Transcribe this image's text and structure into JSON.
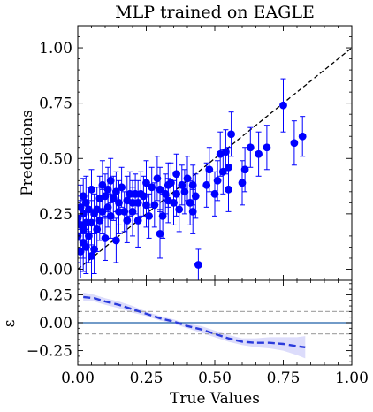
{
  "figure": {
    "title": "MLP trained on EAGLE",
    "xlabel": "True Values",
    "ylabel_top": "Predictions",
    "ylabel_bottom": "ε"
  },
  "colors": {
    "points": "#0000ff",
    "errorbars": "#0000ff",
    "diagonal": "#000000",
    "residual_line": "#2a3bdc",
    "residual_band": "#dcdcfb",
    "zero_line": "#1f5fa8",
    "threshold_lines": "#aaaaaa"
  },
  "chart_data": [
    {
      "type": "scatter",
      "title": "MLP trained on EAGLE",
      "ylabel": "Predictions",
      "xlim": [
        0.0,
        1.0
      ],
      "ylim": [
        -0.05,
        1.1
      ],
      "xticks": [
        "0.00",
        "0.25",
        "0.50",
        "0.75",
        "1.00"
      ],
      "yticks": [
        "0.00",
        "0.25",
        "0.50",
        "0.75",
        "1.00"
      ],
      "reference_line": {
        "style": "dashed",
        "from": [
          0,
          0
        ],
        "to": [
          1,
          1
        ]
      },
      "series": [
        {
          "points": [
            [
              0.0,
              0.23,
              0.1
            ],
            [
              0.0,
              0.15,
              0.12
            ],
            [
              0.01,
              0.08,
              0.12
            ],
            [
              0.01,
              0.2,
              0.11
            ],
            [
              0.01,
              0.28,
              0.1
            ],
            [
              0.02,
              0.12,
              0.13
            ],
            [
              0.02,
              0.18,
              0.13
            ],
            [
              0.02,
              0.25,
              0.09
            ],
            [
              0.02,
              0.33,
              0.08
            ],
            [
              0.03,
              0.1,
              0.12
            ],
            [
              0.03,
              0.21,
              0.1
            ],
            [
              0.03,
              0.3,
              0.12
            ],
            [
              0.04,
              0.15,
              0.12
            ],
            [
              0.04,
              0.27,
              0.1
            ],
            [
              0.05,
              0.36,
              0.09
            ],
            [
              0.05,
              0.21,
              0.1
            ],
            [
              0.06,
              0.25,
              0.09
            ],
            [
              0.06,
              0.09,
              0.11
            ],
            [
              0.07,
              0.27,
              0.1
            ],
            [
              0.07,
              0.18,
              0.1
            ],
            [
              0.05,
              0.06,
              0.1
            ],
            [
              0.08,
              0.22,
              0.09
            ],
            [
              0.08,
              0.32,
              0.1
            ],
            [
              0.09,
              0.26,
              0.1
            ],
            [
              0.09,
              0.38,
              0.11
            ],
            [
              0.1,
              0.33,
              0.1
            ],
            [
              0.1,
              0.14,
              0.1
            ],
            [
              0.11,
              0.28,
              0.09
            ],
            [
              0.11,
              0.36,
              0.1
            ],
            [
              0.12,
              0.24,
              0.1
            ],
            [
              0.12,
              0.4,
              0.1
            ],
            [
              0.13,
              0.32,
              0.1
            ],
            [
              0.14,
              0.35,
              0.09
            ],
            [
              0.14,
              0.13,
              0.1
            ],
            [
              0.15,
              0.3,
              0.1
            ],
            [
              0.15,
              0.26,
              0.1
            ],
            [
              0.16,
              0.37,
              0.09
            ],
            [
              0.17,
              0.26,
              0.09
            ],
            [
              0.18,
              0.31,
              0.11
            ],
            [
              0.18,
              0.22,
              0.1
            ],
            [
              0.19,
              0.34,
              0.1
            ],
            [
              0.2,
              0.3,
              0.1
            ],
            [
              0.2,
              0.26,
              0.11
            ],
            [
              0.21,
              0.34,
              0.09
            ],
            [
              0.22,
              0.22,
              0.12
            ],
            [
              0.22,
              0.3,
              0.1
            ],
            [
              0.23,
              0.34,
              0.1
            ],
            [
              0.24,
              0.33,
              0.09
            ],
            [
              0.25,
              0.29,
              0.1
            ],
            [
              0.25,
              0.39,
              0.1
            ],
            [
              0.26,
              0.24,
              0.1
            ],
            [
              0.27,
              0.37,
              0.09
            ],
            [
              0.28,
              0.29,
              0.1
            ],
            [
              0.29,
              0.41,
              0.1
            ],
            [
              0.3,
              0.36,
              0.1
            ],
            [
              0.3,
              0.16,
              0.11
            ],
            [
              0.31,
              0.24,
              0.1
            ],
            [
              0.32,
              0.34,
              0.09
            ],
            [
              0.33,
              0.38,
              0.1
            ],
            [
              0.33,
              0.31,
              0.1
            ],
            [
              0.34,
              0.39,
              0.09
            ],
            [
              0.35,
              0.3,
              0.1
            ],
            [
              0.36,
              0.43,
              0.09
            ],
            [
              0.36,
              0.34,
              0.1
            ],
            [
              0.37,
              0.27,
              0.1
            ],
            [
              0.38,
              0.38,
              0.09
            ],
            [
              0.39,
              0.35,
              0.1
            ],
            [
              0.4,
              0.41,
              0.1
            ],
            [
              0.41,
              0.3,
              0.1
            ],
            [
              0.42,
              0.26,
              0.1
            ],
            [
              0.42,
              0.38,
              0.09
            ],
            [
              0.43,
              0.33,
              0.1
            ],
            [
              0.44,
              0.02,
              0.07
            ],
            [
              0.47,
              0.38,
              0.1
            ],
            [
              0.48,
              0.45,
              0.1
            ],
            [
              0.5,
              0.34,
              0.1
            ],
            [
              0.51,
              0.4,
              0.09
            ],
            [
              0.52,
              0.52,
              0.1
            ],
            [
              0.53,
              0.44,
              0.1
            ],
            [
              0.54,
              0.53,
              0.1
            ],
            [
              0.55,
              0.46,
              0.09
            ],
            [
              0.55,
              0.36,
              0.1
            ],
            [
              0.56,
              0.61,
              0.1
            ],
            [
              0.6,
              0.39,
              0.1
            ],
            [
              0.61,
              0.45,
              0.1
            ],
            [
              0.63,
              0.55,
              0.09
            ],
            [
              0.66,
              0.52,
              0.1
            ],
            [
              0.69,
              0.55,
              0.1
            ],
            [
              0.75,
              0.74,
              0.12
            ],
            [
              0.79,
              0.57,
              0.1
            ],
            [
              0.82,
              0.6,
              0.09
            ]
          ]
        }
      ]
    },
    {
      "type": "line",
      "ylabel": "ε",
      "xlabel": "True Values",
      "xlim": [
        0.0,
        1.0
      ],
      "ylim": [
        -0.38,
        0.38
      ],
      "xticks": [
        "0.00",
        "0.25",
        "0.50",
        "0.75",
        "1.00"
      ],
      "yticks": [
        "−0.25",
        "0.00",
        "0.25"
      ],
      "ytick_values": [
        -0.25,
        0.0,
        0.25
      ],
      "hlines": {
        "zero": 0.0,
        "upper": 0.1,
        "lower": -0.1
      },
      "series": [
        {
          "style": "dashed",
          "x": [
            0.02,
            0.06,
            0.1,
            0.15,
            0.2,
            0.25,
            0.3,
            0.35,
            0.4,
            0.45,
            0.5,
            0.55,
            0.6,
            0.65,
            0.7,
            0.75,
            0.8,
            0.83
          ],
          "y": [
            0.23,
            0.22,
            0.19,
            0.16,
            0.12,
            0.08,
            0.04,
            0.01,
            -0.03,
            -0.06,
            -0.1,
            -0.14,
            -0.17,
            -0.18,
            -0.18,
            -0.19,
            -0.21,
            -0.22
          ],
          "band_half_width": [
            0.04,
            0.03,
            0.03,
            0.03,
            0.03,
            0.02,
            0.02,
            0.02,
            0.02,
            0.03,
            0.03,
            0.03,
            0.03,
            0.04,
            0.05,
            0.06,
            0.08,
            0.1
          ]
        }
      ]
    }
  ]
}
